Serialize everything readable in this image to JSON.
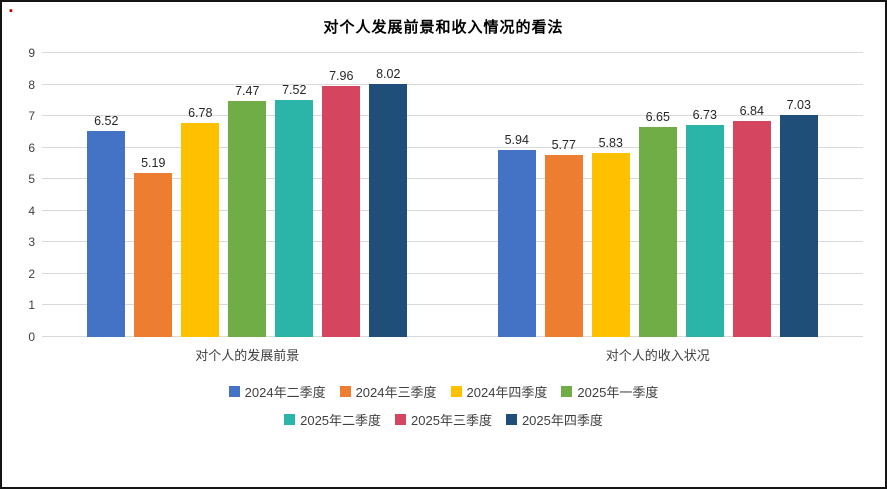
{
  "icons": {
    "red_mark_glyph": "▪"
  },
  "title": "对个人发展前景和收入情况的看法",
  "chart_data": {
    "type": "bar",
    "title": "对个人发展前景和收入情况的看法",
    "categories": [
      "对个人的发展前景",
      "对个人的收入状况"
    ],
    "series": [
      {
        "name": "2024年二季度",
        "color": "#4472C4",
        "values": [
          6.52,
          5.94
        ]
      },
      {
        "name": "2024年三季度",
        "color": "#ED7D31",
        "values": [
          5.19,
          5.77
        ]
      },
      {
        "name": "2024年四季度",
        "color": "#FFC000",
        "values": [
          6.78,
          5.83
        ]
      },
      {
        "name": "2025年一季度",
        "color": "#70AD47",
        "values": [
          7.47,
          6.65
        ]
      },
      {
        "name": "2025年二季度",
        "color": "#2BB5A9",
        "values": [
          7.52,
          6.73
        ]
      },
      {
        "name": "2025年三季度",
        "color": "#D6455F",
        "values": [
          7.96,
          6.84
        ]
      },
      {
        "name": "2025年四季度",
        "color": "#1F4E79",
        "values": [
          8.02,
          7.03
        ]
      }
    ],
    "ylim": [
      0,
      9
    ],
    "yticks": [
      0,
      1,
      2,
      3,
      4,
      5,
      6,
      7,
      8,
      9
    ],
    "grid": true,
    "legend_position": "bottom"
  }
}
